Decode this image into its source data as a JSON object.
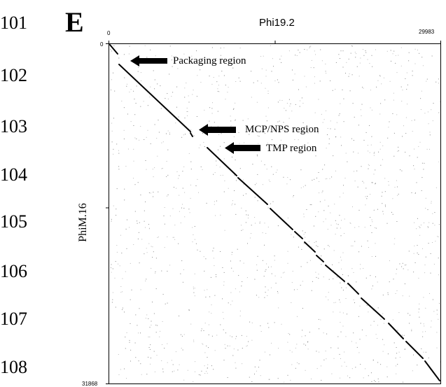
{
  "line_numbers": [
    "101",
    "102",
    "103",
    "104",
    "105",
    "106",
    "107",
    "108"
  ],
  "panel_letter": "E",
  "x_axis": {
    "title": "Phi19.2",
    "min_label": "0",
    "max_label": "29983"
  },
  "y_axis": {
    "title": "PhiM.16",
    "min_label": "0",
    "max_label": "31868"
  },
  "annotations": [
    {
      "label": "Packaging region"
    },
    {
      "label": "MCP/NPS region"
    },
    {
      "label": "TMP region"
    }
  ],
  "colors": {
    "ink": "#000000",
    "background": "#ffffff"
  }
}
